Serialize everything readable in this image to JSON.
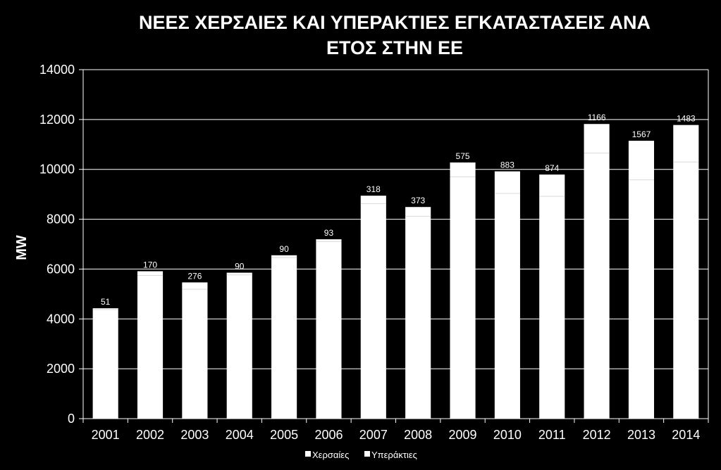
{
  "chart_data": {
    "type": "bar",
    "stacked": true,
    "title_line1": "ΝΕΕΣ ΧΕΡΣΑΙΕΣ ΚΑΙ ΥΠΕΡΑΚΤΙΕΣ ΕΓΚΑΤΑΣΤΑΣΕΙΣ ΑΝΑ",
    "title_line2": "ΕΤΟΣ ΣΤΗΝ ΕΕ",
    "ylabel": "MW",
    "xlabel": "",
    "ylim": [
      0,
      14000
    ],
    "yticks": [
      "0",
      "2000",
      "4000",
      "6000",
      "8000",
      "10000",
      "12000",
      "14000"
    ],
    "grid": true,
    "legend_position": "bottom",
    "categories": [
      "2001",
      "2002",
      "2003",
      "2004",
      "2005",
      "2006",
      "2007",
      "2008",
      "2009",
      "2010",
      "2011",
      "2012",
      "2013",
      "2014"
    ],
    "series": [
      {
        "name": "Χερσαίες",
        "values": [
          4377,
          5743,
          5189,
          5765,
          6464,
          7102,
          8626,
          8117,
          9702,
          9037,
          8918,
          10654,
          9580,
          10297
        ]
      },
      {
        "name": "Υπεράκτιες",
        "values": [
          51,
          170,
          276,
          90,
          90,
          93,
          318,
          373,
          575,
          883,
          874,
          1166,
          1567,
          1483
        ]
      }
    ],
    "data_labels": [
      "51",
      "170",
      "276",
      "90",
      "90",
      "93",
      "318",
      "373",
      "575",
      "883",
      "874",
      "1166",
      "1567",
      "1483"
    ]
  },
  "colors": {
    "background": "#000000",
    "bar": "#ffffff",
    "divider": "#d9d9d9",
    "text": "#ffffff",
    "grid": "#ffffff"
  }
}
